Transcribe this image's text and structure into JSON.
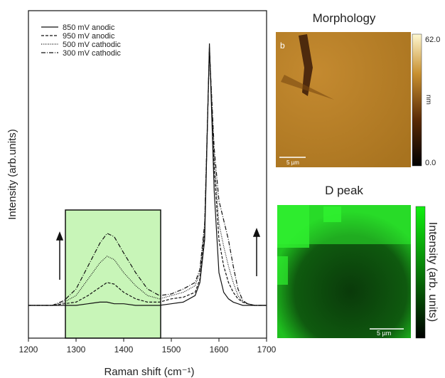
{
  "chart_data": {
    "type": "line",
    "x_label": "Raman shift (cm⁻¹)",
    "y_label": "Intensity (arb.units)",
    "x": [
      1200,
      1250,
      1275,
      1300,
      1325,
      1350,
      1365,
      1380,
      1400,
      1425,
      1450,
      1475,
      1500,
      1525,
      1550,
      1560,
      1570,
      1580,
      1590,
      1600,
      1610,
      1620,
      1630,
      1640,
      1650,
      1660,
      1675,
      1700
    ],
    "series": [
      {
        "name": "850 mV anodic",
        "color": "#111111",
        "style": "solid",
        "values": [
          10,
          10,
          10,
          10,
          10.5,
          11,
          11,
          10.5,
          10.5,
          10,
          10,
          10,
          10.5,
          11,
          13,
          17,
          30,
          90,
          45,
          20,
          14,
          12,
          11,
          10.5,
          10,
          10,
          10,
          10
        ]
      },
      {
        "name": "950 mV anodic",
        "color": "#111111",
        "style": "dashed",
        "values": [
          10,
          10,
          10.5,
          11,
          13,
          15.5,
          17,
          16.5,
          14,
          12,
          11,
          11,
          12,
          12.5,
          14,
          18,
          32,
          89,
          52,
          30,
          22,
          17,
          14,
          12,
          11,
          10.5,
          10,
          10
        ]
      },
      {
        "name": "500 mV cathodic",
        "color": "#111111",
        "style": "dotted",
        "values": [
          10,
          10,
          11,
          13,
          18,
          23,
          25,
          24,
          20,
          16,
          13,
          12,
          13,
          14,
          16,
          20,
          34,
          88,
          55,
          35,
          28,
          22,
          17,
          13,
          11,
          10.5,
          10,
          10
        ]
      },
      {
        "name": "300 mV cathodic",
        "color": "#111111",
        "style": "dashdot",
        "values": [
          10,
          10,
          11.5,
          15,
          22,
          29,
          32,
          31,
          26,
          20,
          15,
          13,
          13.5,
          15,
          17,
          21,
          35,
          88,
          58,
          42,
          36,
          30,
          22,
          15,
          11.5,
          10.5,
          10,
          10
        ]
      }
    ],
    "xlim": [
      1200,
      1700
    ],
    "xticks": [
      1200,
      1300,
      1400,
      1500,
      1600,
      1700
    ],
    "ylim": [
      0,
      100
    ]
  },
  "panels": {
    "morphology": {
      "title": "Morphology",
      "panel_label": "b",
      "scale_bar": "5 µm",
      "colorbar_max": "62.0",
      "colorbar_min": "0.0",
      "colorbar_unit": "nm"
    },
    "d_peak": {
      "title": "D peak",
      "scale_bar": "5 µm",
      "colorbar_label": "Intensity (arb. units)"
    }
  }
}
